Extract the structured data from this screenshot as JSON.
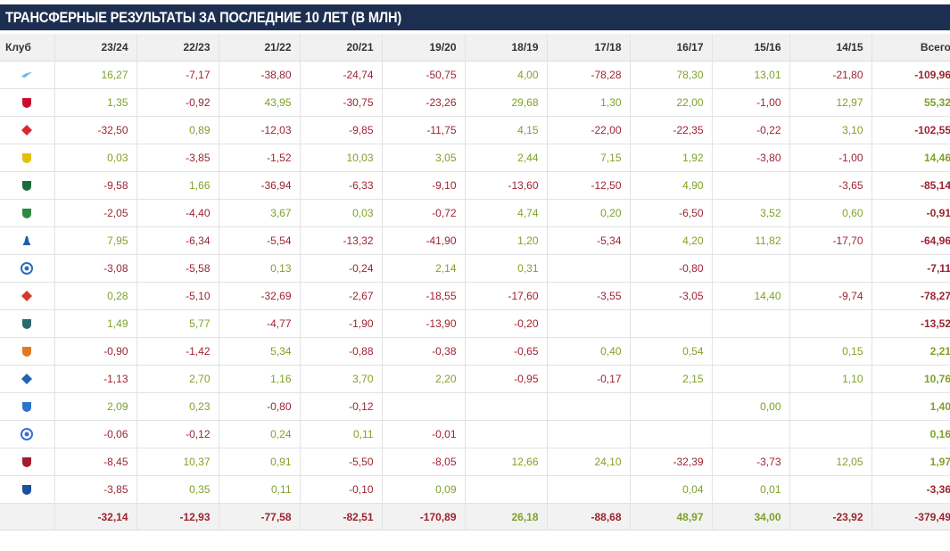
{
  "title": "ТРАНСФЕРНЫЕ РЕЗУЛЬТАТЫ ЗА ПОСЛЕДНИЕ 10 ЛЕТ (В МЛН)",
  "colors": {
    "header_bg": "#1d2f50",
    "positive": "#7fa127",
    "negative": "#9c2330"
  },
  "columns": [
    "Клуб",
    "23/24",
    "22/23",
    "21/22",
    "20/21",
    "19/20",
    "18/19",
    "17/18",
    "16/17",
    "15/16",
    "14/15",
    "Всего"
  ],
  "rows": [
    {
      "logo": "zenit-logo-icon",
      "logo_color": "#6fb3e0",
      "shape": "wing",
      "values": [
        "16,27",
        "-7,17",
        "-38,80",
        "-24,74",
        "-50,75",
        "4,00",
        "-78,28",
        "78,30",
        "13,01",
        "-21,80"
      ],
      "total": "-109,96"
    },
    {
      "logo": "cska-logo-icon",
      "logo_color": "#c8102e",
      "shape": "shield",
      "values": [
        "1,35",
        "-0,92",
        "43,95",
        "-30,75",
        "-23,26",
        "29,68",
        "1,30",
        "22,00",
        "-1,00",
        "12,97"
      ],
      "total": "55,32"
    },
    {
      "logo": "spartak-logo-icon",
      "logo_color": "#d6282f",
      "shape": "diamond",
      "values": [
        "-32,50",
        "0,89",
        "-12,03",
        "-9,85",
        "-11,75",
        "4,15",
        "-22,00",
        "-22,35",
        "-0,22",
        "3,10"
      ],
      "total": "-102,55"
    },
    {
      "logo": "rostov-logo-icon",
      "logo_color": "#e3c000",
      "shape": "shield",
      "values": [
        "0,03",
        "-3,85",
        "-1,52",
        "10,03",
        "3,05",
        "2,44",
        "7,15",
        "1,92",
        "-3,80",
        "-1,00"
      ],
      "total": "14,46"
    },
    {
      "logo": "krasnodar-logo-icon",
      "logo_color": "#1d6b3a",
      "shape": "shield",
      "values": [
        "-9,58",
        "1,66",
        "-36,94",
        "-6,33",
        "-9,10",
        "-13,60",
        "-12,50",
        "4,90",
        "",
        "-3,65"
      ],
      "total": "-85,14"
    },
    {
      "logo": "akhmat-logo-icon",
      "logo_color": "#2e8b3d",
      "shape": "shield",
      "values": [
        "-2,05",
        "-4,40",
        "3,67",
        "0,03",
        "-0,72",
        "4,74",
        "0,20",
        "-6,50",
        "3,52",
        "0,60"
      ],
      "total": "-0,91"
    },
    {
      "logo": "dynamo-logo-icon",
      "logo_color": "#1f5fa8",
      "shape": "letter",
      "values": [
        "7,95",
        "-6,34",
        "-5,54",
        "-13,32",
        "-41,90",
        "1,20",
        "-5,34",
        "4,20",
        "11,82",
        "-17,70"
      ],
      "total": "-64,96"
    },
    {
      "logo": "orenburg-logo-icon",
      "logo_color": "#2a6db5",
      "shape": "circle",
      "values": [
        "-3,08",
        "-5,58",
        "0,13",
        "-0,24",
        "2,14",
        "0,31",
        "",
        "-0,80",
        "",
        ""
      ],
      "total": "-7,11"
    },
    {
      "logo": "lokomotiv-logo-icon",
      "logo_color": "#d2392b",
      "shape": "diamond",
      "values": [
        "0,28",
        "-5,10",
        "-32,69",
        "-2,67",
        "-18,55",
        "-17,60",
        "-3,55",
        "-3,05",
        "14,40",
        "-9,74"
      ],
      "total": "-78,27"
    },
    {
      "logo": "fakel-logo-icon",
      "logo_color": "#2d6a6f",
      "shape": "shield",
      "values": [
        "1,49",
        "5,77",
        "-4,77",
        "-1,90",
        "-13,90",
        "-0,20",
        "",
        "",
        "",
        ""
      ],
      "total": "-13,52"
    },
    {
      "logo": "ural-logo-icon",
      "logo_color": "#e07a1f",
      "shape": "shield",
      "values": [
        "-0,90",
        "-1,42",
        "5,34",
        "-0,88",
        "-0,38",
        "-0,65",
        "0,40",
        "0,54",
        "",
        "0,15"
      ],
      "total": "2,21"
    },
    {
      "logo": "krylia-logo-icon",
      "logo_color": "#2563b0",
      "shape": "diamond",
      "values": [
        "-1,13",
        "2,70",
        "1,16",
        "3,70",
        "2,20",
        "-0,95",
        "-0,17",
        "2,15",
        "",
        "1,10"
      ],
      "total": "10,76"
    },
    {
      "logo": "nizhny-logo-icon",
      "logo_color": "#2f73c9",
      "shape": "shield",
      "values": [
        "2,09",
        "0,23",
        "-0,80",
        "-0,12",
        "",
        "",
        "",
        "",
        "0,00",
        ""
      ],
      "total": "1,40"
    },
    {
      "logo": "sochi-logo-icon",
      "logo_color": "#3b6fd1",
      "shape": "circle",
      "values": [
        "-0,06",
        "-0,12",
        "0,24",
        "0,11",
        "-0,01",
        "",
        "",
        "",
        "",
        ""
      ],
      "total": "0,16"
    },
    {
      "logo": "rubin-logo-icon",
      "logo_color": "#a51c2b",
      "shape": "shield",
      "values": [
        "-8,45",
        "10,37",
        "0,91",
        "-5,50",
        "-8,05",
        "12,66",
        "24,10",
        "-32,39",
        "-3,73",
        "12,05"
      ],
      "total": "1,97"
    },
    {
      "logo": "baltika-logo-icon",
      "logo_color": "#1c4f9c",
      "shape": "shield",
      "values": [
        "-3,85",
        "0,35",
        "0,11",
        "-0,10",
        "0,09",
        "",
        "",
        "0,04",
        "0,01",
        ""
      ],
      "total": "-3,36"
    }
  ],
  "footer": {
    "values": [
      "-32,14",
      "-12,93",
      "-77,58",
      "-82,51",
      "-170,89",
      "26,18",
      "-88,68",
      "48,97",
      "34,00",
      "-23,92"
    ],
    "total": "-379,49"
  }
}
